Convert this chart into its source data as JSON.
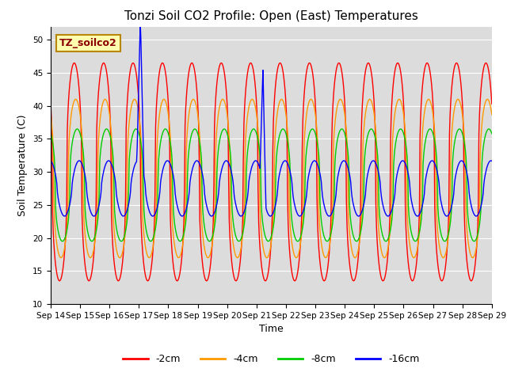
{
  "title": "Tonzi Soil CO2 Profile: Open (East) Temperatures",
  "xlabel": "Time",
  "ylabel": "Soil Temperature (C)",
  "ylim": [
    10,
    52
  ],
  "yticks": [
    10,
    15,
    20,
    25,
    30,
    35,
    40,
    45,
    50
  ],
  "legend_label": "TZ_soilco2",
  "series_labels": [
    "-2cm",
    "-4cm",
    "-8cm",
    "-16cm"
  ],
  "series_colors": [
    "#ff0000",
    "#ff9900",
    "#00cc00",
    "#0000ff"
  ],
  "plot_bg_color": "#dcdcdc",
  "fig_bg_color": "#ffffff",
  "title_fontsize": 11,
  "axis_label_fontsize": 9,
  "tick_fontsize": 7.5,
  "legend_fontsize": 9,
  "n_days": 15,
  "start_day": 14,
  "end_day": 29,
  "figsize": [
    6.4,
    4.8
  ],
  "dpi": 100
}
